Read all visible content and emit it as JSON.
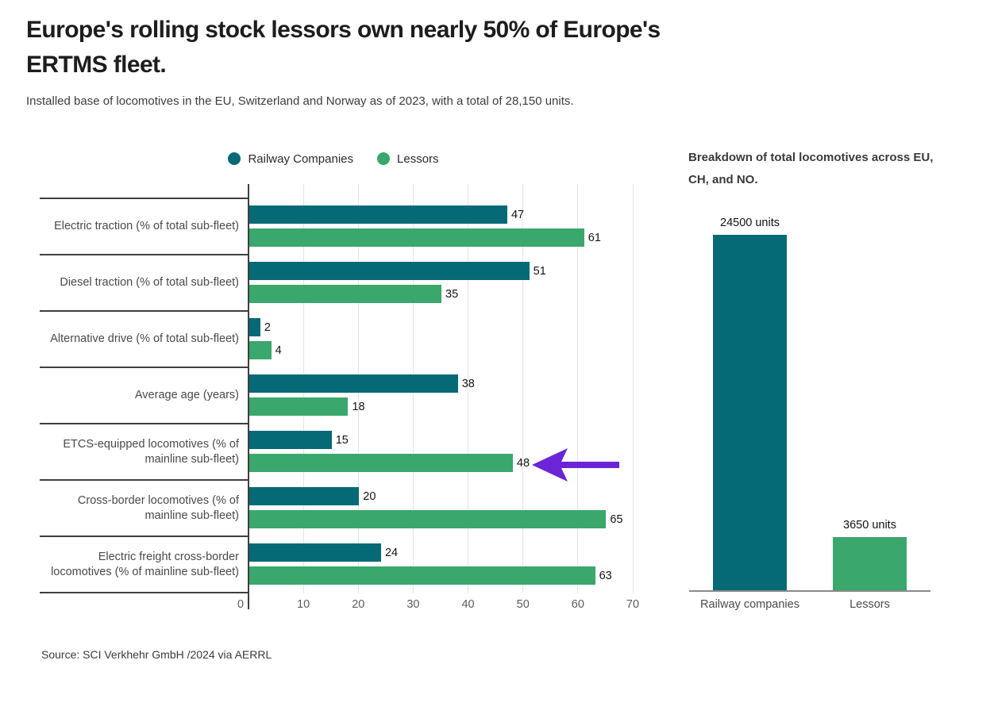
{
  "header": {
    "title_lines": [
      "Europe's rolling stock lessors own nearly 50% of Europe's",
      "ERTMS fleet."
    ],
    "subtitle": "Installed base of locomotives in the EU, Switzerland and Norway as of 2023, with a total of 28,150 units."
  },
  "legend": [
    {
      "label": "Railway Companies",
      "color": "#066a76"
    },
    {
      "label": "Lessors",
      "color": "#3aa76d"
    }
  ],
  "colors": {
    "railway_companies": "#066a76",
    "lessors": "#3aa76d",
    "annotation_arrow": "#6b24d6",
    "axis_line": "#3f3f3f",
    "gridline": "#e4e4e4"
  },
  "chart_data": [
    {
      "type": "bar",
      "orientation": "horizontal",
      "categories": [
        "Electric traction (% of total sub-fleet)",
        "Diesel traction (% of total sub-fleet)",
        "Alternative drive (% of total sub-fleet)",
        "Average age (years)",
        "ETCS-equipped locomotives (% of mainline sub-fleet)",
        "Cross-border locomotives (% of mainline sub-fleet)",
        "Electric freight cross-border locomotives (% of mainline sub-fleet)"
      ],
      "series": [
        {
          "name": "Railway Companies",
          "color": "#066a76",
          "values": [
            47,
            51,
            2,
            38,
            15,
            20,
            24
          ]
        },
        {
          "name": "Lessors",
          "color": "#3aa76d",
          "values": [
            61,
            35,
            4,
            18,
            48,
            65,
            63
          ]
        }
      ],
      "xlim": [
        0,
        70
      ],
      "xticks": [
        0,
        10,
        20,
        30,
        40,
        50,
        60,
        70
      ],
      "grid": "vertical",
      "legend_position": "top-center",
      "annotation": {
        "shape": "left-arrow",
        "color": "#6b24d6",
        "target": "Lessors value 48 (ETCS-equipped locomotives)"
      }
    },
    {
      "type": "bar",
      "orientation": "vertical",
      "title_lines": [
        "Breakdown of total locomotives across EU,",
        "CH, and NO."
      ],
      "categories": [
        "Railway companies",
        "Lessors"
      ],
      "values": [
        24500,
        3650
      ],
      "bar_labels": [
        "24500 units",
        "3650 units"
      ],
      "colors": [
        "#066a76",
        "#3aa76d"
      ],
      "ylim": [
        0,
        24500
      ]
    }
  ],
  "source": "Source: SCI Verkhehr GmbH /2024 via AERRL"
}
